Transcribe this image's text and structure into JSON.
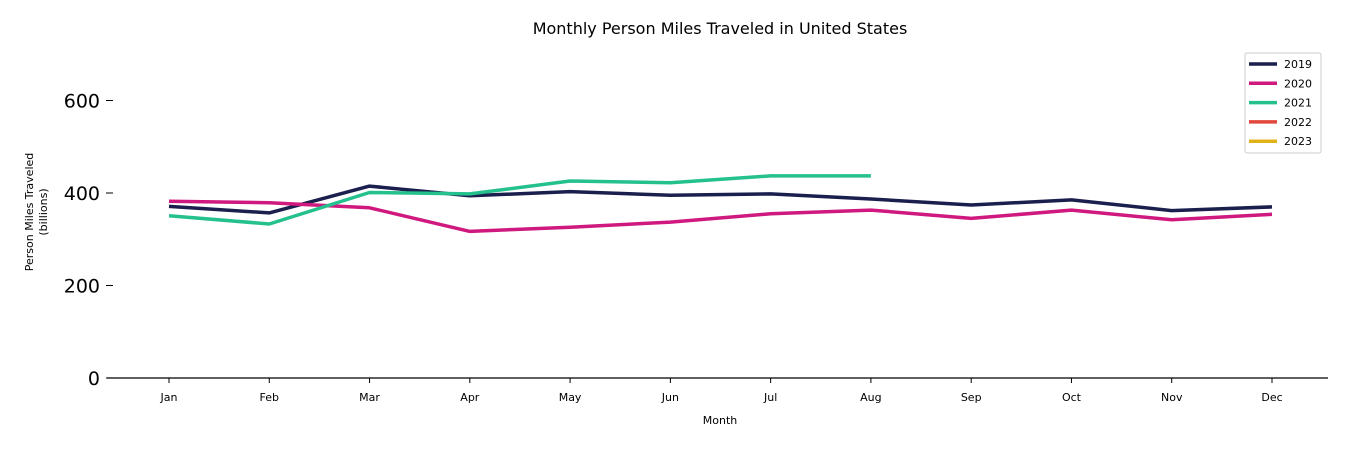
{
  "chart_data": {
    "type": "line",
    "title": "Monthly Person Miles Traveled in United States",
    "xlabel": "Month",
    "ylabel_lines": [
      "Person Miles Traveled",
      "(billions)"
    ],
    "categories": [
      "Jan",
      "Feb",
      "Mar",
      "Apr",
      "May",
      "Jun",
      "Jul",
      "Aug",
      "Sep",
      "Oct",
      "Nov",
      "Dec"
    ],
    "yticks": [
      0,
      200,
      400,
      600
    ],
    "ylim": [
      0,
      720
    ],
    "grid": false,
    "legend_position": "top-right",
    "series": [
      {
        "name": "2019",
        "color": "#1b1f4d",
        "values": [
          371,
          357,
          415,
          394,
          403,
          395,
          398,
          387,
          374,
          385,
          362,
          370
        ]
      },
      {
        "name": "2020",
        "color": "#d0197f",
        "values": [
          382,
          379,
          368,
          317,
          326,
          337,
          355,
          363,
          345,
          363,
          342,
          354
        ]
      },
      {
        "name": "2021",
        "color": "#24c08e",
        "values": [
          351,
          333,
          401,
          398,
          426,
          422,
          437,
          437,
          null,
          null,
          null,
          null
        ]
      },
      {
        "name": "2022",
        "color": "#e0483b",
        "values": [
          null,
          null,
          null,
          null,
          null,
          null,
          null,
          null,
          null,
          null,
          null,
          null
        ]
      },
      {
        "name": "2023",
        "color": "#e2b319",
        "values": [
          null,
          null,
          null,
          null,
          null,
          null,
          null,
          null,
          null,
          null,
          null,
          null
        ]
      }
    ]
  }
}
